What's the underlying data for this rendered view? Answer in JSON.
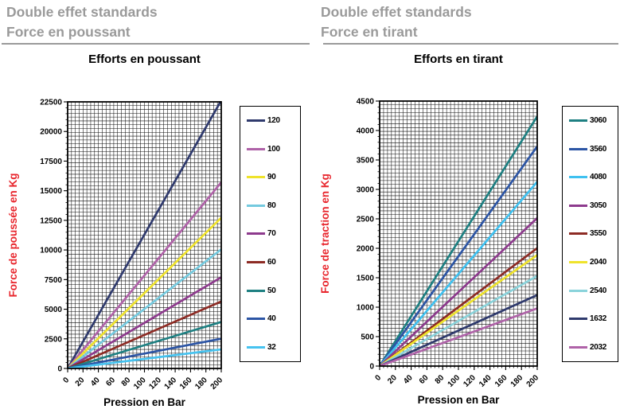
{
  "header_left": {
    "line1": "Double effet standards",
    "line2": "Force en poussant"
  },
  "header_right": {
    "line1": "Double effet standards",
    "line2": "Force en tirant"
  },
  "colors": {
    "header_gray": "#9a9a9a",
    "axis_title_red": "#e8262d",
    "grid_black": "#111111",
    "text_black": "#000000"
  },
  "chart_data": [
    {
      "type": "line",
      "title": "Efforts en poussant",
      "xlabel": "Pression  en Bar",
      "ylabel": "Force de poussée  en Kg",
      "xlim": [
        0,
        200
      ],
      "ylim": [
        0,
        22500
      ],
      "x_ticks": [
        0,
        20,
        40,
        60,
        80,
        100,
        120,
        140,
        160,
        180,
        200
      ],
      "y_ticks": [
        0,
        2500,
        5000,
        7500,
        10000,
        12500,
        15000,
        17500,
        20000,
        22500
      ],
      "grid": true,
      "legend_position": "right",
      "series": [
        {
          "name": "120",
          "color": "#2f3a6d",
          "x": [
            0,
            200
          ],
          "y": [
            0,
            22619
          ]
        },
        {
          "name": "100",
          "color": "#af62a8",
          "x": [
            0,
            200
          ],
          "y": [
            0,
            15708
          ]
        },
        {
          "name": "90",
          "color": "#efe32b",
          "x": [
            0,
            200
          ],
          "y": [
            0,
            12723
          ]
        },
        {
          "name": "80",
          "color": "#74cadf",
          "x": [
            0,
            200
          ],
          "y": [
            0,
            10053
          ]
        },
        {
          "name": "70",
          "color": "#8d3a8d",
          "x": [
            0,
            200
          ],
          "y": [
            0,
            7697
          ]
        },
        {
          "name": "60",
          "color": "#8d2b24",
          "x": [
            0,
            200
          ],
          "y": [
            0,
            5655
          ]
        },
        {
          "name": "50",
          "color": "#1e8082",
          "x": [
            0,
            200
          ],
          "y": [
            0,
            3927
          ]
        },
        {
          "name": "40",
          "color": "#2c55a5",
          "x": [
            0,
            200
          ],
          "y": [
            0,
            2513
          ]
        },
        {
          "name": "32",
          "color": "#46c3f0",
          "x": [
            0,
            200
          ],
          "y": [
            0,
            1608
          ]
        }
      ]
    },
    {
      "type": "line",
      "title": "Efforts en tirant",
      "xlabel": "Pression  en Bar",
      "ylabel": "Force de traction en Kg",
      "xlim": [
        0,
        200
      ],
      "ylim": [
        0,
        4500
      ],
      "x_ticks": [
        0,
        20,
        40,
        60,
        80,
        100,
        120,
        140,
        160,
        180,
        200
      ],
      "y_ticks": [
        0,
        500,
        1000,
        1500,
        2000,
        2500,
        3000,
        3500,
        4000,
        4500
      ],
      "grid": true,
      "legend_position": "right",
      "series": [
        {
          "name": "3060",
          "color": "#1e8082",
          "x": [
            0,
            200
          ],
          "y": [
            0,
            4241
          ]
        },
        {
          "name": "3560",
          "color": "#2c55a5",
          "x": [
            0,
            200
          ],
          "y": [
            0,
            3731
          ]
        },
        {
          "name": "4080",
          "color": "#3fc1f0",
          "x": [
            0,
            200
          ],
          "y": [
            0,
            3130
          ]
        },
        {
          "name": "3050",
          "color": "#8d3a8d",
          "x": [
            0,
            200
          ],
          "y": [
            0,
            2513
          ]
        },
        {
          "name": "3550",
          "color": "#8d2b24",
          "x": [
            0,
            200
          ],
          "y": [
            0,
            2003
          ]
        },
        {
          "name": "2040",
          "color": "#efe32b",
          "x": [
            0,
            200
          ],
          "y": [
            0,
            1885
          ]
        },
        {
          "name": "2540",
          "color": "#8ad3db",
          "x": [
            0,
            200
          ],
          "y": [
            0,
            1532
          ]
        },
        {
          "name": "1632",
          "color": "#2f3a6d",
          "x": [
            0,
            200
          ],
          "y": [
            0,
            1206
          ]
        },
        {
          "name": "2032",
          "color": "#af62a8",
          "x": [
            0,
            200
          ],
          "y": [
            0,
            980
          ]
        }
      ]
    }
  ]
}
